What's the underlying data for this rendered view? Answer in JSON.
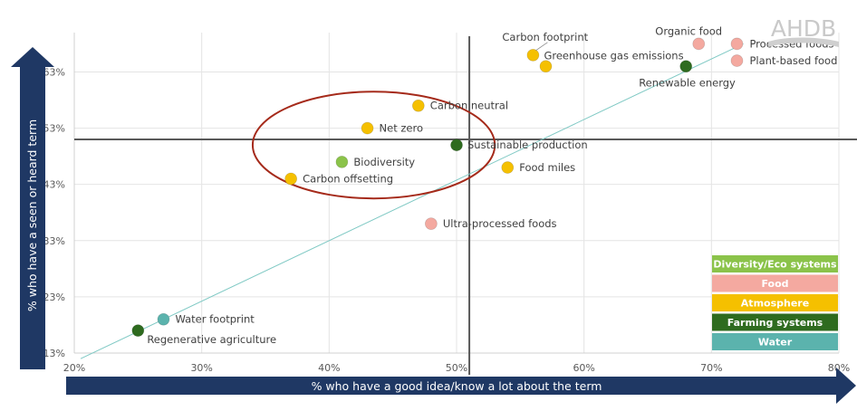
{
  "brand": "AHDB",
  "chart_data": {
    "type": "scatter",
    "xlabel": "% who have a good idea/know a lot about the term",
    "ylabel": "% who have a seen or heard term",
    "xlim": [
      20,
      80
    ],
    "ylim": [
      13,
      70
    ],
    "x_ticks": [
      20,
      30,
      40,
      50,
      60,
      70,
      80
    ],
    "x_tick_labels": [
      "20%",
      "30%",
      "40%",
      "50%",
      "60%",
      "70%",
      "80%"
    ],
    "y_ticks": [
      13,
      23,
      33,
      43,
      53,
      63
    ],
    "y_tick_labels": [
      "13%",
      "23%",
      "33%",
      "43%",
      "53%",
      "63%"
    ],
    "grid": true,
    "reference_lines": {
      "x": 51,
      "y": 51
    },
    "trend_line": {
      "from": [
        20.5,
        12
      ],
      "to": [
        72.5,
        68
      ]
    },
    "highlight_ellipse": {
      "center": [
        43.5,
        50
      ],
      "rx": 9.5,
      "ry": 9.5
    },
    "categories": [
      {
        "name": "Diversity/Eco systems",
        "color": "#8bc34a"
      },
      {
        "name": "Food",
        "color": "#f4a9a0"
      },
      {
        "name": "Atmosphere",
        "color": "#f5c000"
      },
      {
        "name": "Farming systems",
        "color": "#2e6b1f"
      },
      {
        "name": "Water",
        "color": "#5bb3ad"
      }
    ],
    "legend_placement": "bottom-right",
    "points": [
      {
        "label": "Carbon footprint",
        "x": 56,
        "y": 66,
        "category": "Atmosphere"
      },
      {
        "label": "Greenhouse gas emissions",
        "x": 57,
        "y": 64,
        "category": "Atmosphere"
      },
      {
        "label": "Organic food",
        "x": 69,
        "y": 68,
        "category": "Food"
      },
      {
        "label": "Processed foods",
        "x": 72,
        "y": 68,
        "category": "Food"
      },
      {
        "label": "Plant-based food",
        "x": 72,
        "y": 65,
        "category": "Food"
      },
      {
        "label": "Renewable energy",
        "x": 68,
        "y": 64,
        "category": "Farming systems"
      },
      {
        "label": "Carbon neutral",
        "x": 47,
        "y": 57,
        "category": "Atmosphere"
      },
      {
        "label": "Net zero",
        "x": 43,
        "y": 53,
        "category": "Atmosphere"
      },
      {
        "label": "Sustainable production",
        "x": 50,
        "y": 50,
        "category": "Farming systems"
      },
      {
        "label": "Biodiversity",
        "x": 41,
        "y": 47,
        "category": "Diversity/Eco systems"
      },
      {
        "label": "Carbon offsetting",
        "x": 37,
        "y": 44,
        "category": "Atmosphere"
      },
      {
        "label": "Food miles",
        "x": 54,
        "y": 46,
        "category": "Atmosphere"
      },
      {
        "label": "Ultra-processed foods",
        "x": 48,
        "y": 36,
        "category": "Food"
      },
      {
        "label": "Water footprint",
        "x": 27,
        "y": 19,
        "category": "Water"
      },
      {
        "label": "Regenerative agriculture",
        "x": 25,
        "y": 17,
        "category": "Farming systems"
      }
    ]
  }
}
